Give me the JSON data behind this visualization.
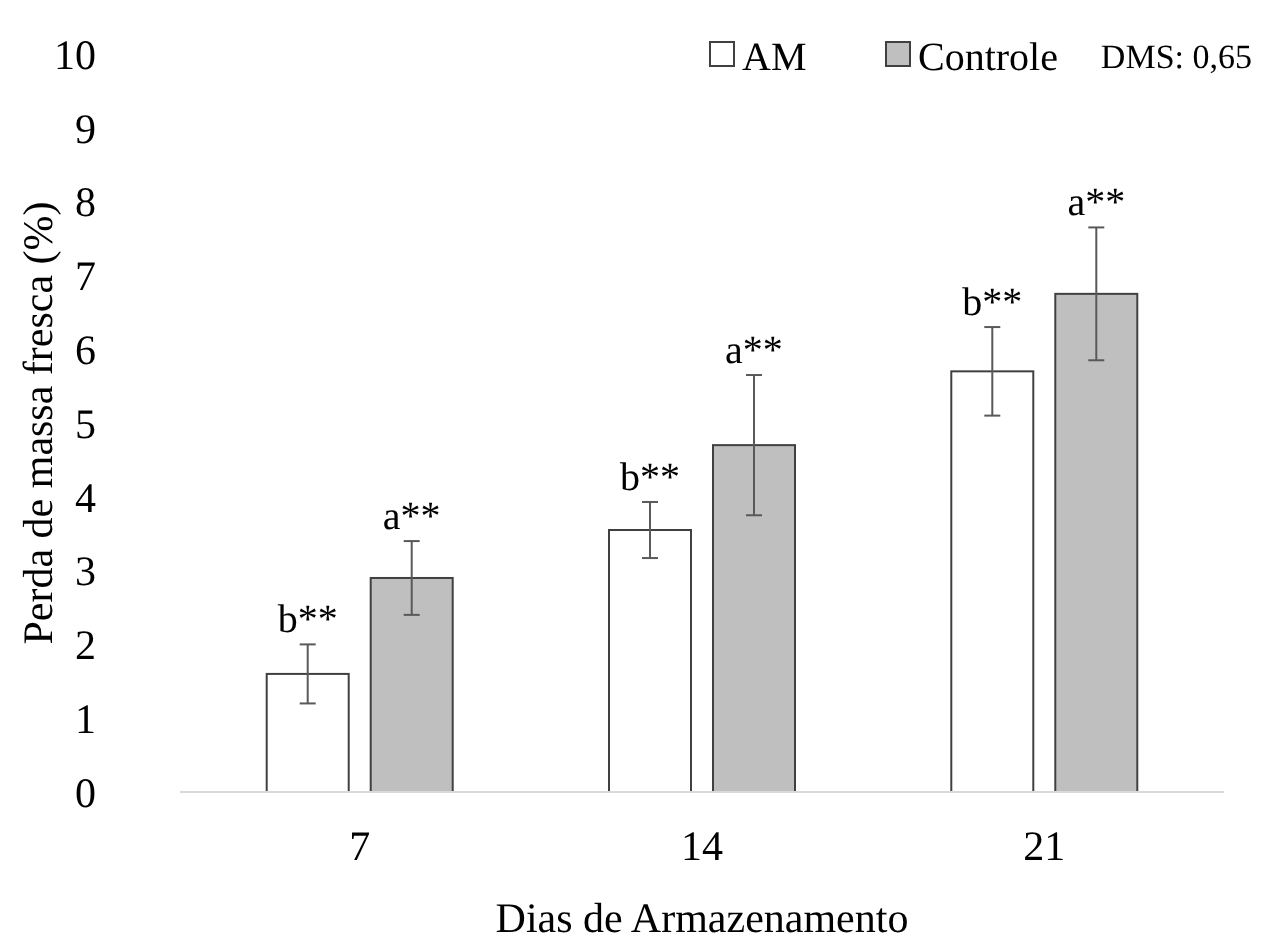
{
  "chart_data": {
    "type": "bar",
    "xlabel": "Dias de Armazenamento",
    "ylabel": "Perda de massa fresca (%)",
    "categories": [
      "7",
      "14",
      "21"
    ],
    "series": [
      {
        "name": "AM",
        "color": "#ffffff",
        "values": [
          1.6,
          3.55,
          5.7
        ],
        "errors": [
          0.4,
          0.38,
          0.6
        ]
      },
      {
        "name": "Controle",
        "color": "#bfbfbf",
        "values": [
          2.9,
          4.7,
          6.75
        ],
        "errors": [
          0.5,
          0.95,
          0.9
        ]
      }
    ],
    "ylim": [
      0,
      10
    ],
    "yticks": [
      0,
      1,
      2,
      3,
      4,
      5,
      6,
      7,
      8,
      9,
      10
    ],
    "grid": false,
    "legend": "top",
    "annotations": [
      "b**",
      "a**",
      "b**",
      "a**",
      "b**",
      "a**",
      "DMS: 0,65"
    ]
  }
}
